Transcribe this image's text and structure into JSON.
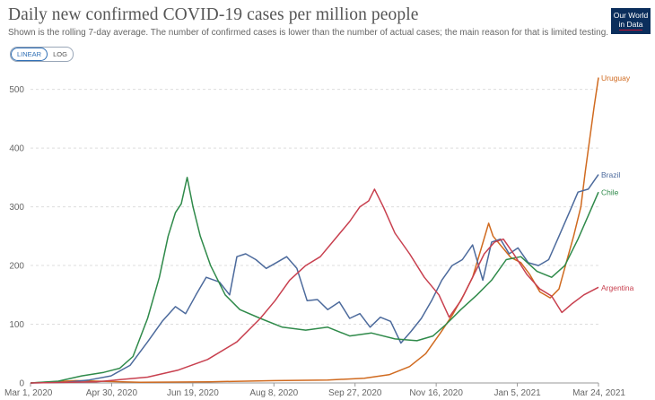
{
  "header": {
    "title": "Daily new confirmed COVID-19 cases per million people",
    "subtitle": "Shown is the rolling 7-day average. The number of confirmed cases is lower than the number of actual cases; the main reason for that is limited testing.",
    "logo_line1": "Our World",
    "logo_line2": "in Data",
    "logo_color": "#0b2e5c"
  },
  "controls": {
    "linear_label": "LINEAR",
    "log_label": "LOG",
    "active": "linear"
  },
  "chart_data": {
    "type": "line",
    "title": "Daily new confirmed COVID-19 cases per million people",
    "x_ticks": [
      "Mar 1, 2020",
      "Apr 30, 2020",
      "Jun 19, 2020",
      "Aug 8, 2020",
      "Sep 27, 2020",
      "Nov 16, 2020",
      "Jan 5, 2021",
      "Mar 24, 2021"
    ],
    "x_range": [
      "2020-03-01",
      "2021-03-24"
    ],
    "y_ticks": [
      0,
      100,
      200,
      300,
      400,
      500
    ],
    "ylim": [
      0,
      530
    ],
    "grid": "horizontal dashed",
    "legend": "labels at line ends",
    "series": [
      {
        "name": "Uruguay",
        "color": "#d06a1f",
        "points": [
          [
            "2020-03-01",
            0
          ],
          [
            "2020-04-01",
            4
          ],
          [
            "2020-05-15",
            1
          ],
          [
            "2020-07-01",
            2
          ],
          [
            "2020-08-15",
            4
          ],
          [
            "2020-09-20",
            5
          ],
          [
            "2020-10-15",
            8
          ],
          [
            "2020-11-01",
            14
          ],
          [
            "2020-11-15",
            28
          ],
          [
            "2020-11-26",
            50
          ],
          [
            "2020-12-06",
            85
          ],
          [
            "2020-12-14",
            115
          ],
          [
            "2020-12-22",
            150
          ],
          [
            "2020-12-28",
            180
          ],
          [
            "2021-01-03",
            230
          ],
          [
            "2021-01-08",
            272
          ],
          [
            "2021-01-11",
            250
          ],
          [
            "2021-01-17",
            232
          ],
          [
            "2021-01-23",
            214
          ],
          [
            "2021-01-30",
            205
          ],
          [
            "2021-02-05",
            185
          ],
          [
            "2021-02-12",
            155
          ],
          [
            "2021-02-19",
            145
          ],
          [
            "2021-02-25",
            160
          ],
          [
            "2021-03-02",
            205
          ],
          [
            "2021-03-07",
            250
          ],
          [
            "2021-03-12",
            300
          ],
          [
            "2021-03-15",
            360
          ],
          [
            "2021-03-18",
            415
          ],
          [
            "2021-03-21",
            470
          ],
          [
            "2021-03-24",
            520
          ]
        ]
      },
      {
        "name": "Brazil",
        "color": "#4c6a9c",
        "points": [
          [
            "2020-03-01",
            0
          ],
          [
            "2020-03-25",
            1
          ],
          [
            "2020-04-10",
            5
          ],
          [
            "2020-04-25",
            12
          ],
          [
            "2020-05-08",
            30
          ],
          [
            "2020-05-20",
            70
          ],
          [
            "2020-05-30",
            105
          ],
          [
            "2020-06-08",
            130
          ],
          [
            "2020-06-15",
            118
          ],
          [
            "2020-06-22",
            150
          ],
          [
            "2020-06-29",
            180
          ],
          [
            "2020-07-08",
            172
          ],
          [
            "2020-07-15",
            150
          ],
          [
            "2020-07-20",
            215
          ],
          [
            "2020-07-26",
            220
          ],
          [
            "2020-08-02",
            210
          ],
          [
            "2020-08-09",
            195
          ],
          [
            "2020-08-16",
            205
          ],
          [
            "2020-08-23",
            215
          ],
          [
            "2020-08-30",
            195
          ],
          [
            "2020-09-06",
            140
          ],
          [
            "2020-09-13",
            142
          ],
          [
            "2020-09-20",
            125
          ],
          [
            "2020-09-28",
            138
          ],
          [
            "2020-10-05",
            110
          ],
          [
            "2020-10-12",
            118
          ],
          [
            "2020-10-19",
            95
          ],
          [
            "2020-10-26",
            112
          ],
          [
            "2020-11-02",
            105
          ],
          [
            "2020-11-09",
            68
          ],
          [
            "2020-11-16",
            88
          ],
          [
            "2020-11-23",
            110
          ],
          [
            "2020-11-30",
            140
          ],
          [
            "2020-12-07",
            175
          ],
          [
            "2020-12-14",
            200
          ],
          [
            "2020-12-21",
            210
          ],
          [
            "2020-12-28",
            235
          ],
          [
            "2021-01-04",
            175
          ],
          [
            "2021-01-10",
            240
          ],
          [
            "2021-01-16",
            245
          ],
          [
            "2021-01-22",
            220
          ],
          [
            "2021-01-28",
            230
          ],
          [
            "2021-02-04",
            205
          ],
          [
            "2021-02-11",
            200
          ],
          [
            "2021-02-18",
            210
          ],
          [
            "2021-02-25",
            250
          ],
          [
            "2021-03-04",
            290
          ],
          [
            "2021-03-10",
            325
          ],
          [
            "2021-03-17",
            330
          ],
          [
            "2021-03-24",
            355
          ]
        ]
      },
      {
        "name": "Chile",
        "color": "#2f8a4a",
        "points": [
          [
            "2020-03-01",
            0
          ],
          [
            "2020-03-20",
            3
          ],
          [
            "2020-04-05",
            12
          ],
          [
            "2020-04-20",
            18
          ],
          [
            "2020-05-01",
            25
          ],
          [
            "2020-05-10",
            45
          ],
          [
            "2020-05-20",
            110
          ],
          [
            "2020-05-28",
            180
          ],
          [
            "2020-06-03",
            250
          ],
          [
            "2020-06-08",
            290
          ],
          [
            "2020-06-12",
            305
          ],
          [
            "2020-06-16",
            350
          ],
          [
            "2020-06-20",
            300
          ],
          [
            "2020-06-25",
            250
          ],
          [
            "2020-07-02",
            200
          ],
          [
            "2020-07-12",
            150
          ],
          [
            "2020-07-22",
            125
          ],
          [
            "2020-08-05",
            110
          ],
          [
            "2020-08-20",
            95
          ],
          [
            "2020-09-05",
            90
          ],
          [
            "2020-09-20",
            95
          ],
          [
            "2020-10-05",
            80
          ],
          [
            "2020-10-20",
            85
          ],
          [
            "2020-11-05",
            75
          ],
          [
            "2020-11-20",
            72
          ],
          [
            "2020-12-01",
            80
          ],
          [
            "2020-12-10",
            100
          ],
          [
            "2020-12-20",
            125
          ],
          [
            "2020-12-31",
            150
          ],
          [
            "2021-01-10",
            175
          ],
          [
            "2021-01-20",
            210
          ],
          [
            "2021-01-30",
            215
          ],
          [
            "2021-02-10",
            190
          ],
          [
            "2021-02-20",
            180
          ],
          [
            "2021-03-01",
            200
          ],
          [
            "2021-03-10",
            245
          ],
          [
            "2021-03-17",
            285
          ],
          [
            "2021-03-24",
            325
          ]
        ]
      },
      {
        "name": "Argentina",
        "color": "#c8404f",
        "points": [
          [
            "2020-03-01",
            0
          ],
          [
            "2020-04-15",
            2
          ],
          [
            "2020-05-20",
            10
          ],
          [
            "2020-06-10",
            22
          ],
          [
            "2020-06-30",
            40
          ],
          [
            "2020-07-20",
            70
          ],
          [
            "2020-08-05",
            110
          ],
          [
            "2020-08-15",
            140
          ],
          [
            "2020-08-25",
            175
          ],
          [
            "2020-09-05",
            200
          ],
          [
            "2020-09-15",
            215
          ],
          [
            "2020-09-25",
            245
          ],
          [
            "2020-10-05",
            275
          ],
          [
            "2020-10-12",
            300
          ],
          [
            "2020-10-18",
            310
          ],
          [
            "2020-10-22",
            330
          ],
          [
            "2020-10-28",
            300
          ],
          [
            "2020-11-05",
            255
          ],
          [
            "2020-11-15",
            220
          ],
          [
            "2020-11-25",
            180
          ],
          [
            "2020-12-05",
            150
          ],
          [
            "2020-12-12",
            112
          ],
          [
            "2020-12-20",
            140
          ],
          [
            "2020-12-28",
            180
          ],
          [
            "2021-01-05",
            220
          ],
          [
            "2021-01-12",
            240
          ],
          [
            "2021-01-18",
            245
          ],
          [
            "2021-01-25",
            220
          ],
          [
            "2021-02-03",
            185
          ],
          [
            "2021-02-12",
            160
          ],
          [
            "2021-02-20",
            148
          ],
          [
            "2021-02-27",
            120
          ],
          [
            "2021-03-06",
            135
          ],
          [
            "2021-03-14",
            150
          ],
          [
            "2021-03-24",
            163
          ]
        ]
      }
    ]
  }
}
